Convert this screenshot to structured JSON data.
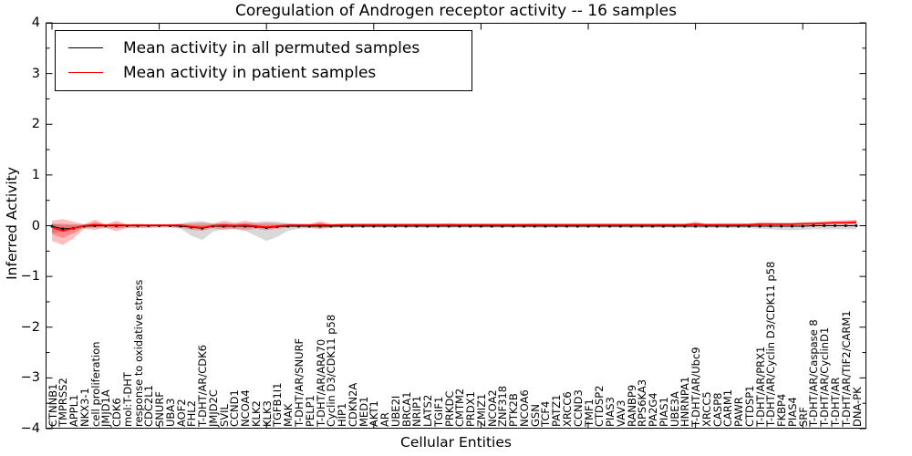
{
  "chart_data": {
    "type": "line",
    "title": "Coregulation of Androgen receptor activity -- 16 samples",
    "xlabel": "Cellular Entities",
    "ylabel": "Inferred Activity",
    "ylim": [
      -4,
      4
    ],
    "ytick_values": [
      4,
      3,
      2,
      1,
      0,
      -1,
      -2,
      -3,
      -4
    ],
    "ytick_labels": [
      "4",
      "3",
      "2",
      "1",
      "0",
      "−1",
      "−2",
      "−3",
      "−4"
    ],
    "ytick_minor_values": [
      3.5,
      2.5,
      1.5,
      0.5,
      -0.5,
      -1.5,
      -2.5,
      -3.5
    ],
    "xtick_major_every": 10,
    "grid": false,
    "legend_position": "upper left",
    "legend": [
      {
        "label": "Mean activity in all permuted samples",
        "color": "#000000"
      },
      {
        "label": "Mean activity in patient samples",
        "color": "#ff0000"
      }
    ],
    "categories": [
      "CTNNB1",
      "TMPRSS2",
      "APPL1",
      "NKX3-1",
      "cell proliferation",
      "JMJD1A",
      "CDK6",
      "mol:T-DHT",
      "response to oxidative stress",
      "CDC2L1",
      "SNURF",
      "UBA3",
      "AOF2",
      "FHL2",
      "T-DHT/AR/CDK6",
      "JMJD2C",
      "SVIL",
      "CCND1",
      "NCOA4",
      "KLK2",
      "KLK3",
      "TGFB1I1",
      "MAK",
      "T-DHT/AR/SNURF",
      "PELP1",
      "T-DHT/AR/ARA70",
      "Cyclin D3/CDK11 p58",
      "HIP1",
      "CDKN2A",
      "MED1",
      "AKT1",
      "AR",
      "UBE2I",
      "BRCA1",
      "NRIP1",
      "LATS2",
      "TGIF1",
      "PRKDC",
      "CMTM2",
      "PRDX1",
      "ZMIZ1",
      "NCOA2",
      "ZNF318",
      "PTK2B",
      "NCOA6",
      "GSN",
      "TCF4",
      "PATZ1",
      "XRCC6",
      "CCND3",
      "TMF1",
      "CTDSP2",
      "PIAS3",
      "VAV3",
      "RANBP9",
      "RPS6KA3",
      "PA2G4",
      "PIAS1",
      "UBE3A",
      "HNRNPA1",
      "T-DHT/AR/Ubc9",
      "XRCC5",
      "CASP8",
      "CARM1",
      "PAWR",
      "CTDSP1",
      "T-DHT/AR/PRX1",
      "T-DHT/AR/Cyclin D3/CDK11 p58",
      "FKBP4",
      "PIAS4",
      "SRF",
      "T-DHT/AR/Caspase 8",
      "T-DHT/AR/CyclinD1",
      "T-DHT/AR",
      "T-DHT/AR/TIF2/CARM1",
      "DNA-PK"
    ],
    "series": [
      {
        "name": "Mean activity in all permuted samples",
        "color": "#000000",
        "marker": "square",
        "values": [
          -0.01,
          -0.06,
          -0.05,
          -0.01,
          0,
          0,
          0,
          0,
          0,
          0,
          0,
          0,
          -0.01,
          -0.03,
          -0.05,
          -0.01,
          -0.01,
          -0.01,
          -0.01,
          -0.02,
          -0.04,
          -0.02,
          -0.01,
          -0.01,
          -0.01,
          -0.01,
          -0.01,
          -0.01,
          -0.01,
          -0.01,
          -0.01,
          -0.01,
          -0.01,
          -0.01,
          -0.01,
          -0.01,
          -0.01,
          -0.01,
          -0.01,
          -0.01,
          -0.01,
          -0.01,
          -0.01,
          -0.01,
          -0.01,
          -0.01,
          -0.01,
          -0.01,
          -0.01,
          -0.01,
          -0.01,
          -0.01,
          -0.01,
          -0.01,
          -0.01,
          -0.01,
          -0.01,
          -0.01,
          -0.01,
          -0.01,
          -0.01,
          -0.01,
          -0.01,
          -0.01,
          -0.01,
          -0.01,
          -0.01,
          -0.01,
          -0.01,
          -0.01,
          -0.01,
          0,
          0,
          0,
          0,
          0
        ]
      },
      {
        "name": "Mean activity in patient samples",
        "color": "#ff0000",
        "marker": "none",
        "values": [
          -0.03,
          -0.1,
          -0.05,
          0,
          0.02,
          0.01,
          0.01,
          0.01,
          0.01,
          0.01,
          0.01,
          0.01,
          0.01,
          -0.02,
          -0.04,
          0,
          0.01,
          0,
          0.01,
          -0.01,
          -0.03,
          -0.01,
          0.01,
          0.01,
          0.01,
          0.02,
          0.01,
          0.02,
          0.02,
          0.02,
          0.02,
          0.02,
          0.02,
          0.02,
          0.02,
          0.02,
          0.02,
          0.02,
          0.02,
          0.02,
          0.02,
          0.02,
          0.02,
          0.02,
          0.02,
          0.02,
          0.02,
          0.02,
          0.02,
          0.02,
          0.02,
          0.02,
          0.02,
          0.02,
          0.02,
          0.02,
          0.02,
          0.02,
          0.02,
          0.02,
          0.03,
          0.02,
          0.02,
          0.02,
          0.02,
          0.02,
          0.03,
          0.03,
          0.03,
          0.03,
          0.04,
          0.04,
          0.05,
          0.06,
          0.06,
          0.07
        ]
      }
    ],
    "bands": [
      {
        "name": "permuted-range",
        "color": "rgba(0,0,0,0.15)",
        "upper": [
          0.04,
          0.04,
          0.03,
          0.03,
          0.03,
          0.03,
          0.03,
          0.03,
          0.03,
          0.03,
          0.03,
          0.03,
          0.04,
          0.08,
          0.09,
          0.05,
          0.04,
          0.04,
          0.05,
          0.07,
          0.09,
          0.08,
          0.05,
          0.04,
          0.03,
          0.03,
          0.03,
          0.03,
          0.03,
          0.03,
          0.03,
          0.03,
          0.03,
          0.03,
          0.03,
          0.03,
          0.03,
          0.03,
          0.03,
          0.03,
          0.03,
          0.03,
          0.03,
          0.03,
          0.03,
          0.03,
          0.03,
          0.03,
          0.03,
          0.03,
          0.03,
          0.03,
          0.03,
          0.03,
          0.03,
          0.03,
          0.03,
          0.03,
          0.03,
          0.03,
          0.03,
          0.03,
          0.03,
          0.03,
          0.03,
          0.03,
          0.04,
          0.04,
          0.05,
          0.05,
          0.05,
          0.04,
          0.05,
          0.05,
          0.06,
          0.06
        ],
        "lower": [
          -0.14,
          -0.12,
          -0.08,
          -0.05,
          -0.05,
          -0.05,
          -0.05,
          -0.05,
          -0.05,
          -0.04,
          -0.04,
          -0.04,
          -0.06,
          -0.2,
          -0.28,
          -0.12,
          -0.06,
          -0.07,
          -0.1,
          -0.2,
          -0.3,
          -0.22,
          -0.1,
          -0.06,
          -0.05,
          -0.05,
          -0.05,
          -0.04,
          -0.04,
          -0.04,
          -0.04,
          -0.04,
          -0.04,
          -0.04,
          -0.04,
          -0.04,
          -0.04,
          -0.04,
          -0.04,
          -0.04,
          -0.04,
          -0.04,
          -0.04,
          -0.04,
          -0.04,
          -0.04,
          -0.04,
          -0.04,
          -0.04,
          -0.04,
          -0.04,
          -0.04,
          -0.04,
          -0.04,
          -0.04,
          -0.04,
          -0.04,
          -0.04,
          -0.04,
          -0.04,
          -0.05,
          -0.05,
          -0.05,
          -0.05,
          -0.05,
          -0.05,
          -0.06,
          -0.07,
          -0.08,
          -0.09,
          -0.08,
          -0.07,
          -0.07,
          -0.07,
          -0.07,
          -0.07
        ]
      },
      {
        "name": "patient-range",
        "color": "rgba(255,0,0,0.25)",
        "upper": [
          0.1,
          0.13,
          0.08,
          0.03,
          0.12,
          0.03,
          0.1,
          0.03,
          0.04,
          0.03,
          0.03,
          0.03,
          0.04,
          0.05,
          0.06,
          0.04,
          0.1,
          0.06,
          0.1,
          0.05,
          0.06,
          0.05,
          0.04,
          0.04,
          0.04,
          0.09,
          0.04,
          0.04,
          0.04,
          0.04,
          0.04,
          0.04,
          0.04,
          0.04,
          0.04,
          0.04,
          0.04,
          0.05,
          0.04,
          0.04,
          0.04,
          0.04,
          0.04,
          0.04,
          0.04,
          0.05,
          0.04,
          0.04,
          0.04,
          0.04,
          0.04,
          0.04,
          0.04,
          0.04,
          0.04,
          0.04,
          0.04,
          0.04,
          0.04,
          0.04,
          0.08,
          0.04,
          0.05,
          0.05,
          0.05,
          0.05,
          0.07,
          0.07,
          0.06,
          0.06,
          0.07,
          0.08,
          0.09,
          0.1,
          0.11,
          0.12
        ],
        "lower": [
          -0.3,
          -0.38,
          -0.25,
          -0.06,
          -0.08,
          -0.04,
          -0.11,
          -0.04,
          -0.04,
          -0.04,
          -0.03,
          -0.03,
          -0.04,
          -0.08,
          -0.1,
          -0.05,
          -0.09,
          -0.06,
          -0.09,
          -0.06,
          -0.09,
          -0.06,
          -0.04,
          -0.03,
          -0.04,
          -0.07,
          -0.03,
          -0.02,
          -0.02,
          -0.02,
          -0.02,
          -0.02,
          -0.02,
          -0.02,
          -0.02,
          -0.02,
          -0.02,
          -0.02,
          -0.02,
          -0.02,
          -0.02,
          -0.02,
          -0.02,
          -0.02,
          -0.02,
          -0.02,
          -0.02,
          -0.02,
          -0.02,
          -0.02,
          -0.02,
          -0.02,
          -0.02,
          -0.02,
          -0.02,
          -0.02,
          -0.02,
          -0.02,
          -0.02,
          -0.02,
          -0.02,
          -0.01,
          -0.01,
          -0.01,
          -0.01,
          -0.01,
          -0.01,
          0,
          0,
          0,
          0,
          0.01,
          0.01,
          0.02,
          0.02,
          0.02
        ]
      }
    ]
  }
}
